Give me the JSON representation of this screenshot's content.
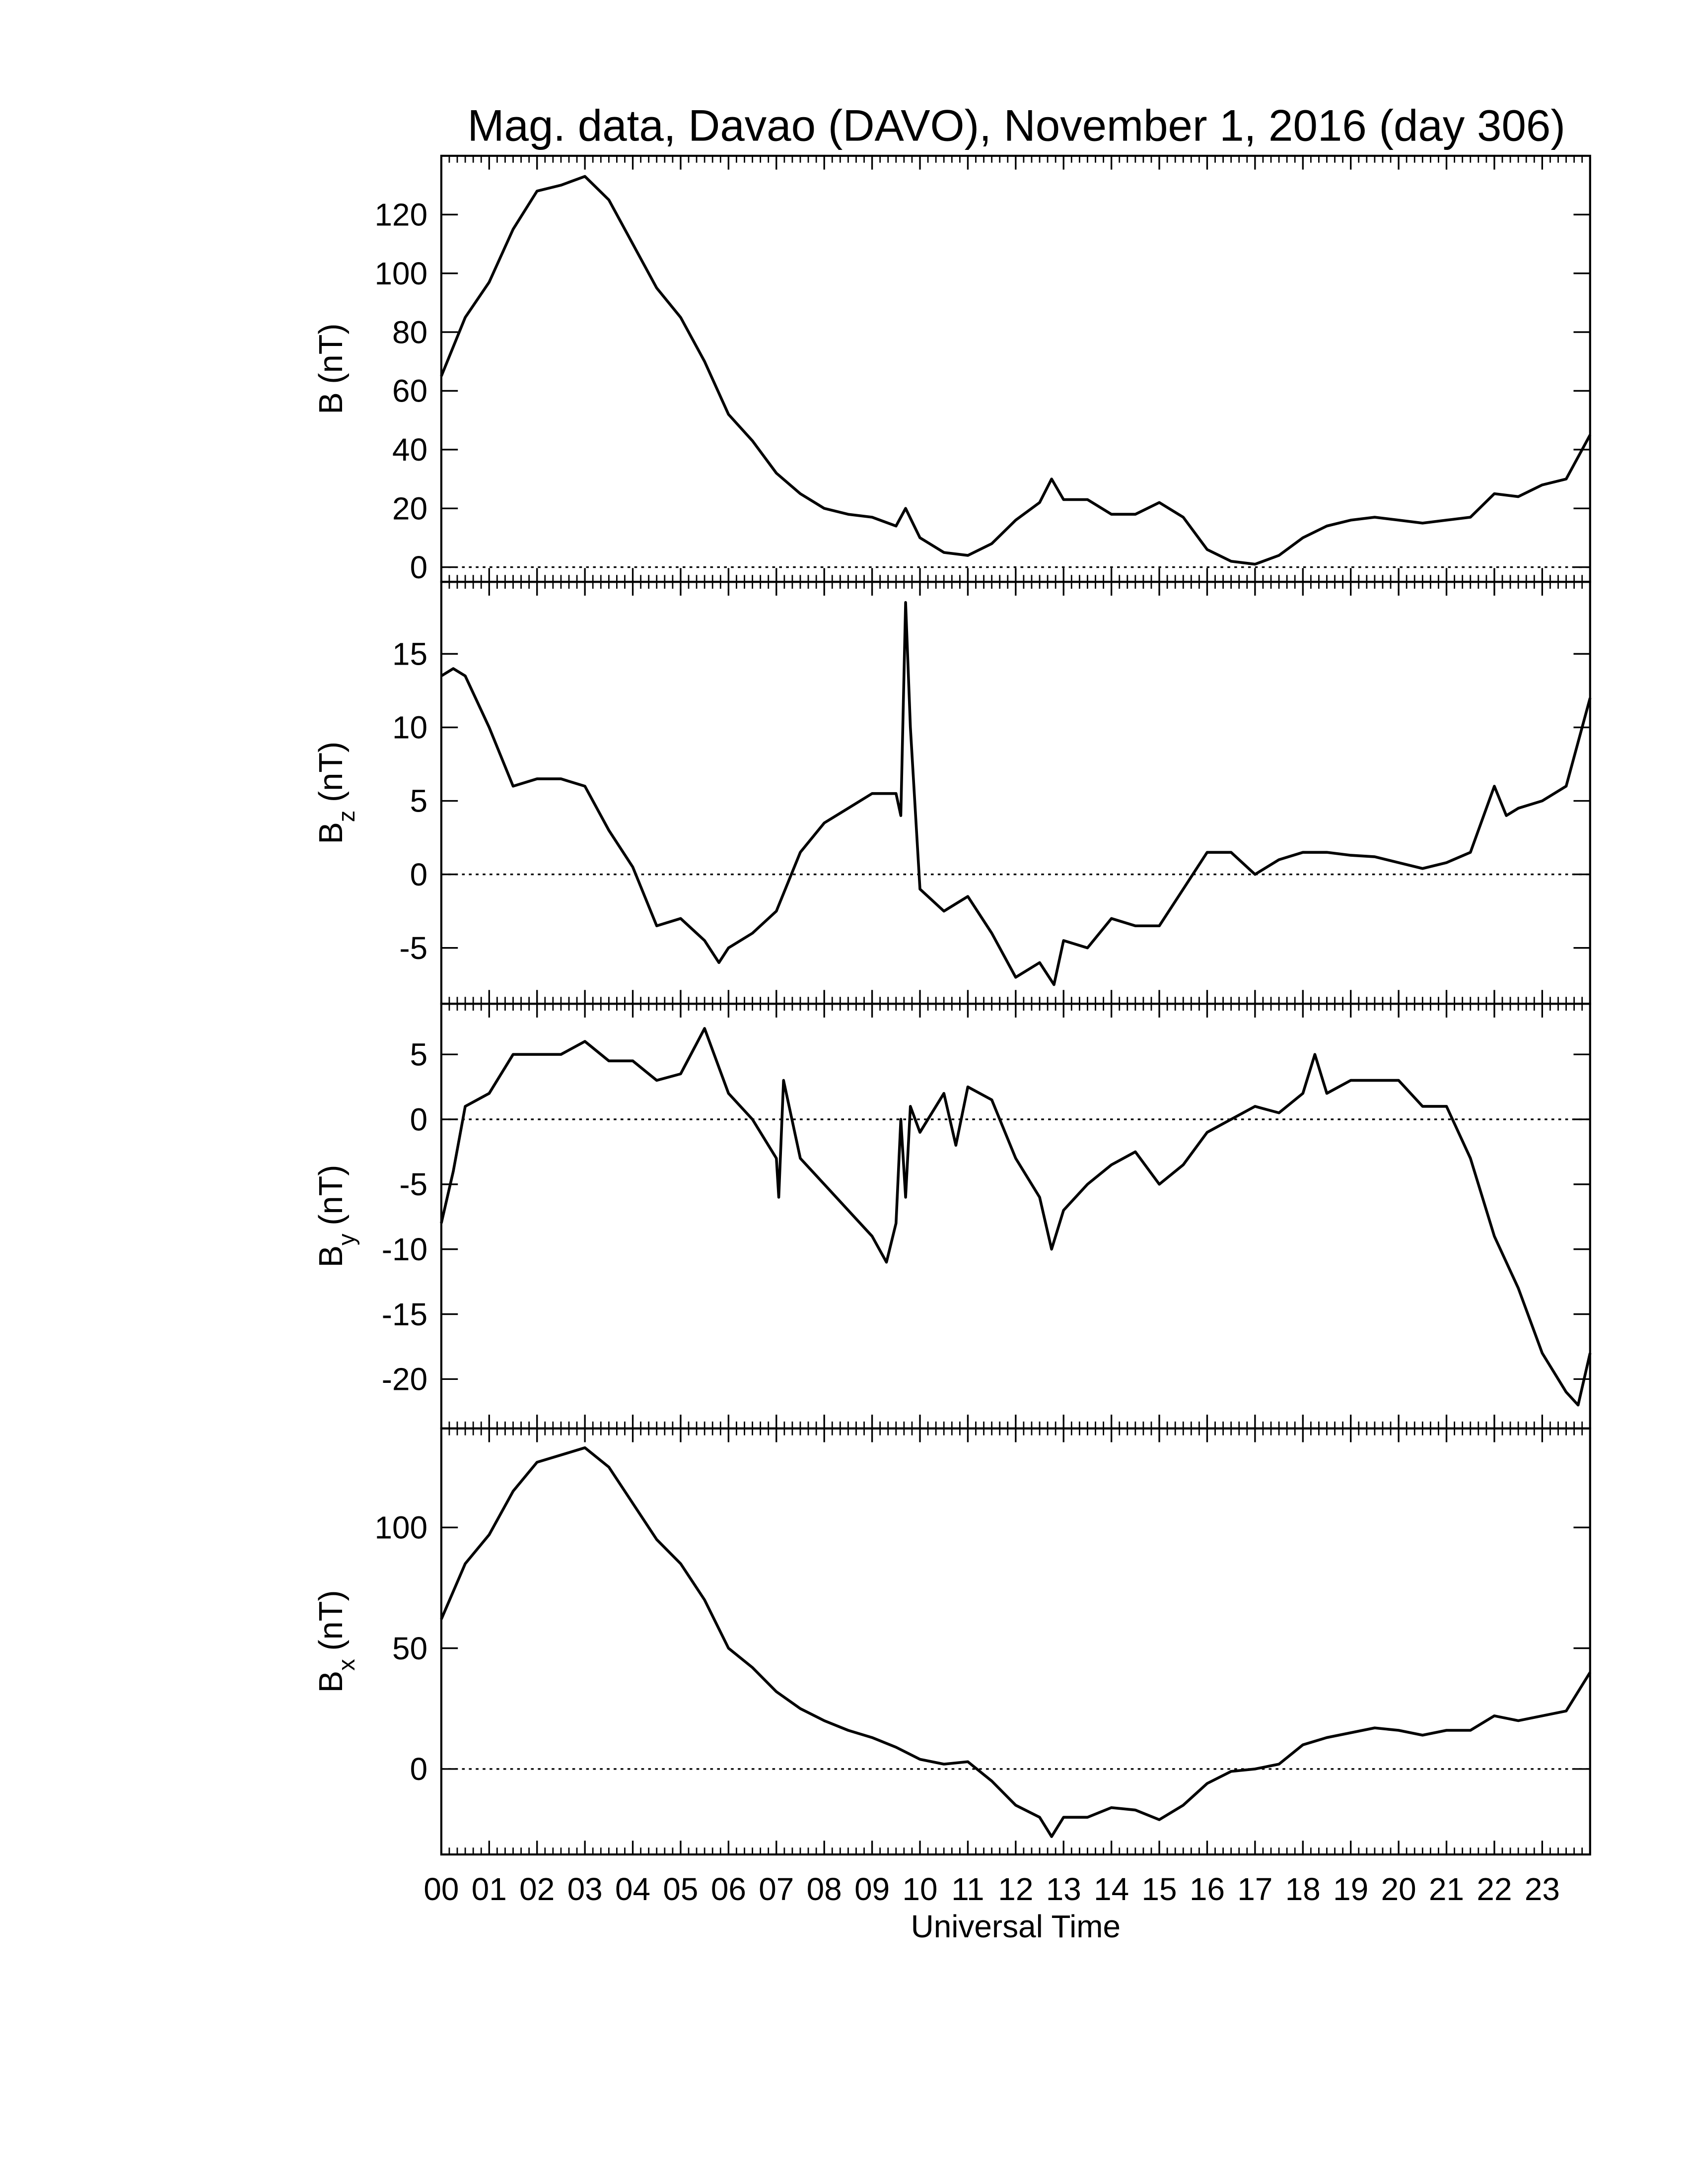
{
  "chart_data": [
    {
      "type": "line",
      "title": "Mag. data, Davao (DAVO), November 1, 2016 (day 306)",
      "ylabel": "B",
      "ylabel_unit": "(nT)",
      "x": [
        0,
        0.5,
        1,
        1.5,
        2,
        2.5,
        3,
        3.5,
        4,
        4.5,
        5,
        5.5,
        6,
        6.5,
        7,
        7.5,
        8,
        8.5,
        9,
        9.5,
        9.7,
        10,
        10.5,
        11,
        11.5,
        12,
        12.5,
        12.75,
        13,
        13.5,
        14,
        14.5,
        15,
        15.5,
        16,
        16.5,
        17,
        17.5,
        18,
        18.5,
        19,
        19.5,
        20,
        20.5,
        21,
        21.5,
        22,
        22.5,
        23,
        23.5,
        24
      ],
      "series": [
        {
          "color": "#000000",
          "values": [
            65,
            85,
            97,
            115,
            128,
            130,
            133,
            125,
            110,
            95,
            85,
            70,
            52,
            43,
            32,
            25,
            20,
            18,
            17,
            14,
            20,
            10,
            5,
            4,
            8,
            16,
            22,
            30,
            23,
            23,
            18,
            18,
            22,
            17,
            6,
            2,
            1,
            4,
            10,
            14,
            16,
            17,
            16,
            15,
            16,
            17,
            25,
            24,
            28,
            30,
            45
          ]
        }
      ],
      "xlim": [
        0,
        24
      ],
      "ylim": [
        -5,
        140
      ],
      "yticks": [
        0,
        20,
        40,
        60,
        80,
        100,
        120
      ],
      "hline": 0
    },
    {
      "type": "line",
      "ylabel": "B",
      "ylabel_sub": "z",
      "ylabel_unit": "(nT)",
      "x": [
        0,
        0.25,
        0.5,
        1,
        1.5,
        2,
        2.5,
        3,
        3.5,
        4,
        4.5,
        5,
        5.5,
        5.8,
        6,
        6.5,
        7,
        7.5,
        8,
        8.5,
        9,
        9.5,
        9.6,
        9.7,
        9.8,
        10,
        10.5,
        11,
        11.5,
        12,
        12.5,
        12.8,
        13,
        13.5,
        14,
        14.5,
        15,
        15.5,
        16,
        16.5,
        17,
        17.5,
        18,
        18.5,
        19,
        19.5,
        20,
        20.5,
        21,
        21.5,
        22,
        22.25,
        22.5,
        23,
        23.5,
        24
      ],
      "series": [
        {
          "color": "#000000",
          "values": [
            13.5,
            14,
            13.5,
            10,
            6,
            6.5,
            6.5,
            6,
            3,
            0.5,
            -3.5,
            -3,
            -4.5,
            -6,
            -5,
            -4,
            -2.5,
            1.5,
            3.5,
            4.5,
            5.5,
            5.5,
            4,
            18.5,
            10,
            -1,
            -2.5,
            -1.5,
            -4,
            -7,
            -6,
            -7.5,
            -4.5,
            -5,
            -3,
            -3.5,
            -3.5,
            -1,
            1.5,
            1.5,
            0,
            1,
            1.5,
            1.5,
            1.3,
            1.2,
            0.8,
            0.4,
            0.8,
            1.5,
            6,
            4,
            4.5,
            5,
            6,
            12
          ]
        }
      ],
      "xlim": [
        0,
        24
      ],
      "ylim": [
        -8.8,
        19.9
      ],
      "yticks": [
        -5,
        0,
        5,
        10,
        15
      ],
      "hline": 0
    },
    {
      "type": "line",
      "ylabel": "B",
      "ylabel_sub": "y",
      "ylabel_unit": "(nT)",
      "x": [
        0,
        0.25,
        0.5,
        1,
        1.5,
        2,
        2.5,
        3,
        3.5,
        4,
        4.5,
        5,
        5.5,
        6,
        6.5,
        7,
        7.05,
        7.15,
        7.5,
        8,
        8.5,
        9,
        9.3,
        9.5,
        9.6,
        9.7,
        9.8,
        10,
        10.5,
        10.75,
        11,
        11.5,
        12,
        12.5,
        12.75,
        13,
        13.5,
        14,
        14.5,
        15,
        15.5,
        16,
        16.5,
        17,
        17.5,
        18,
        18.25,
        18.5,
        19,
        19.5,
        20,
        20.5,
        21,
        21.5,
        22,
        22.5,
        23,
        23.5,
        23.75,
        24
      ],
      "series": [
        {
          "color": "#000000",
          "values": [
            -8,
            -4,
            1,
            2,
            5,
            5,
            5,
            6,
            4.5,
            4.5,
            3,
            3.5,
            7,
            2,
            0,
            -3,
            -6,
            3,
            -3,
            -5,
            -7,
            -9,
            -11,
            -8,
            0,
            -6,
            1,
            -1,
            2,
            -2,
            2.5,
            1.5,
            -3,
            -6,
            -10,
            -7,
            -5,
            -3.5,
            -2.5,
            -5,
            -3.5,
            -1,
            0,
            1,
            0.5,
            2,
            5,
            2,
            3,
            3,
            3,
            1,
            1,
            -3,
            -9,
            -13,
            -18,
            -21,
            -22,
            -18
          ]
        }
      ],
      "xlim": [
        0,
        24
      ],
      "ylim": [
        -23.8,
        8.9
      ],
      "yticks": [
        -20,
        -15,
        -10,
        -5,
        0,
        5
      ],
      "hline": 0
    },
    {
      "type": "line",
      "ylabel": "B",
      "ylabel_sub": "x",
      "ylabel_unit": "(nT)",
      "xlabel": "Universal Time",
      "x": [
        0,
        0.5,
        1,
        1.5,
        2,
        2.5,
        3,
        3.5,
        4,
        4.5,
        5,
        5.5,
        6,
        6.5,
        7,
        7.5,
        8,
        8.5,
        9,
        9.5,
        10,
        10.5,
        11,
        11.5,
        12,
        12.5,
        12.75,
        13,
        13.5,
        14,
        14.5,
        15,
        15.5,
        16,
        16.5,
        17,
        17.5,
        18,
        18.5,
        19,
        19.5,
        20,
        20.5,
        21,
        21.5,
        22,
        22.5,
        23,
        23.5,
        24
      ],
      "series": [
        {
          "color": "#000000",
          "values": [
            62,
            85,
            97,
            115,
            127,
            130,
            133,
            125,
            110,
            95,
            85,
            70,
            50,
            42,
            32,
            25,
            20,
            16,
            13,
            9,
            4,
            2,
            3,
            -5,
            -15,
            -20,
            -28,
            -20,
            -20,
            -16,
            -17,
            -21,
            -15,
            -6,
            -1,
            0,
            2,
            10,
            13,
            15,
            17,
            16,
            14,
            16,
            16,
            22,
            20,
            22,
            24,
            40
          ]
        }
      ],
      "xlim": [
        0,
        24
      ],
      "ylim": [
        -35.4,
        141
      ],
      "yticks": [
        0,
        50,
        100
      ],
      "hline": 0,
      "xticks": [
        {
          "value": 0,
          "label": "00"
        },
        {
          "value": 1,
          "label": "01"
        },
        {
          "value": 2,
          "label": "02"
        },
        {
          "value": 3,
          "label": "03"
        },
        {
          "value": 4,
          "label": "04"
        },
        {
          "value": 5,
          "label": "05"
        },
        {
          "value": 6,
          "label": "06"
        },
        {
          "value": 7,
          "label": "07"
        },
        {
          "value": 8,
          "label": "08"
        },
        {
          "value": 9,
          "label": "09"
        },
        {
          "value": 10,
          "label": "10"
        },
        {
          "value": 11,
          "label": "11"
        },
        {
          "value": 12,
          "label": "12"
        },
        {
          "value": 13,
          "label": "13"
        },
        {
          "value": 14,
          "label": "14"
        },
        {
          "value": 15,
          "label": "15"
        },
        {
          "value": 16,
          "label": "16"
        },
        {
          "value": 17,
          "label": "17"
        },
        {
          "value": 18,
          "label": "18"
        },
        {
          "value": 19,
          "label": "19"
        },
        {
          "value": 20,
          "label": "20"
        },
        {
          "value": 21,
          "label": "21"
        },
        {
          "value": 22,
          "label": "22"
        },
        {
          "value": 23,
          "label": "23"
        }
      ]
    }
  ]
}
